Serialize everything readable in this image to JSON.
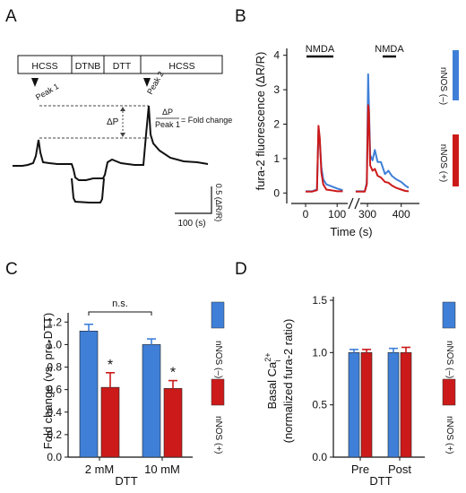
{
  "colors": {
    "blue": "#3f7fd8",
    "red": "#cc1a1a",
    "trace": "#111111"
  },
  "chart_data": [
    {
      "type": "line",
      "panel": "A",
      "protocol_segments": [
        "HCSS",
        "DTNB",
        "DTT",
        "HCSS"
      ],
      "annotations": {
        "peak1": "Peak 1",
        "peak2": "Peak 2",
        "delta": "ΔP",
        "eq_num": "ΔP",
        "eq_den": "Peak 1",
        "eq_rhs": "= Fold change"
      },
      "scalebar": {
        "y_label": "0.5 (ΔR/R)",
        "x_label": "100 (s)"
      }
    },
    {
      "type": "line",
      "panel": "B",
      "ylabel": "fura-2 fluorescence (ΔR/R)",
      "xlabel": "Time (s)",
      "yticks": [
        "0",
        "1",
        "2",
        "3",
        "4"
      ],
      "xticks": [
        "0",
        "100",
        "300",
        "400"
      ],
      "ylim": [
        -0.2,
        4.2
      ],
      "stim_label": "NMDA",
      "series": [
        {
          "name": "nNOS (–)",
          "color": "#3f7fd8",
          "segments": [
            {
              "x": [
                0,
                20,
                36,
                41,
                45,
                50,
                56,
                66,
                80,
                100,
                118
              ],
              "y": [
                0.05,
                0.05,
                0.1,
                1.85,
                1.55,
                0.75,
                0.4,
                0.25,
                0.2,
                0.13,
                0.08
              ]
            },
            {
              "x": [
                265,
                292,
                298,
                302,
                304,
                308,
                315,
                322,
                330,
                340,
                352,
                362,
                372,
                385,
                400,
                412,
                422
              ],
              "y": [
                0.05,
                0.05,
                0.3,
                3.45,
                2.6,
                1.1,
                0.95,
                1.25,
                0.9,
                0.9,
                0.55,
                0.65,
                0.5,
                0.4,
                0.32,
                0.22,
                0.15
              ]
            }
          ]
        },
        {
          "name": "nNOS (+)",
          "color": "#cc1a1a",
          "segments": [
            {
              "x": [
                0,
                20,
                36,
                41,
                45,
                50,
                56,
                66,
                80,
                100,
                118
              ],
              "y": [
                0.04,
                0.04,
                0.08,
                1.95,
                1.6,
                0.6,
                0.25,
                0.1,
                0.08,
                0.05,
                0.05
              ]
            },
            {
              "x": [
                265,
                292,
                298,
                302,
                304,
                308,
                315,
                322,
                330,
                340,
                352,
                362,
                372,
                385,
                400,
                412,
                422
              ],
              "y": [
                0.04,
                0.04,
                0.25,
                2.55,
                2.4,
                0.8,
                0.65,
                0.7,
                0.5,
                0.45,
                0.32,
                0.3,
                0.22,
                0.15,
                0.1,
                0.06,
                0.05
              ]
            }
          ]
        }
      ]
    },
    {
      "type": "bar",
      "panel": "C",
      "ylabel": "Fold change (vs. pre-DTT)",
      "xlabel": "DTT",
      "categories": [
        "2 mM",
        "10 mM"
      ],
      "ylim": [
        0,
        1.25
      ],
      "yticks": [
        "0.0",
        "0.2",
        "0.4",
        "0.6",
        "0.8",
        "1.0",
        "1.2"
      ],
      "bracket_label": "n.s.",
      "significance": "*",
      "series": [
        {
          "name": "nNOS (–)",
          "values": [
            1.12,
            1.0
          ],
          "errors": [
            0.06,
            0.05
          ]
        },
        {
          "name": "nNOS (+)",
          "values": [
            0.62,
            0.61
          ],
          "errors": [
            0.13,
            0.07
          ]
        }
      ]
    },
    {
      "type": "bar",
      "panel": "D",
      "ylabel_line1": "Basal Ca",
      "ylabel_sup": "2+",
      "ylabel_sub": "i",
      "ylabel_line2": "(normalized fura-2 ratio)",
      "xlabel": "DTT",
      "categories": [
        "Pre",
        "Post"
      ],
      "ylim": [
        0,
        1.5
      ],
      "yticks": [
        "0.0",
        "0.5",
        "1.0",
        "1.5"
      ],
      "series": [
        {
          "name": "nNOS (–)",
          "values": [
            1.0,
            1.0
          ],
          "errors": [
            0.03,
            0.04
          ]
        },
        {
          "name": "nNOS (+)",
          "values": [
            1.0,
            1.0
          ],
          "errors": [
            0.03,
            0.05
          ]
        }
      ]
    }
  ]
}
